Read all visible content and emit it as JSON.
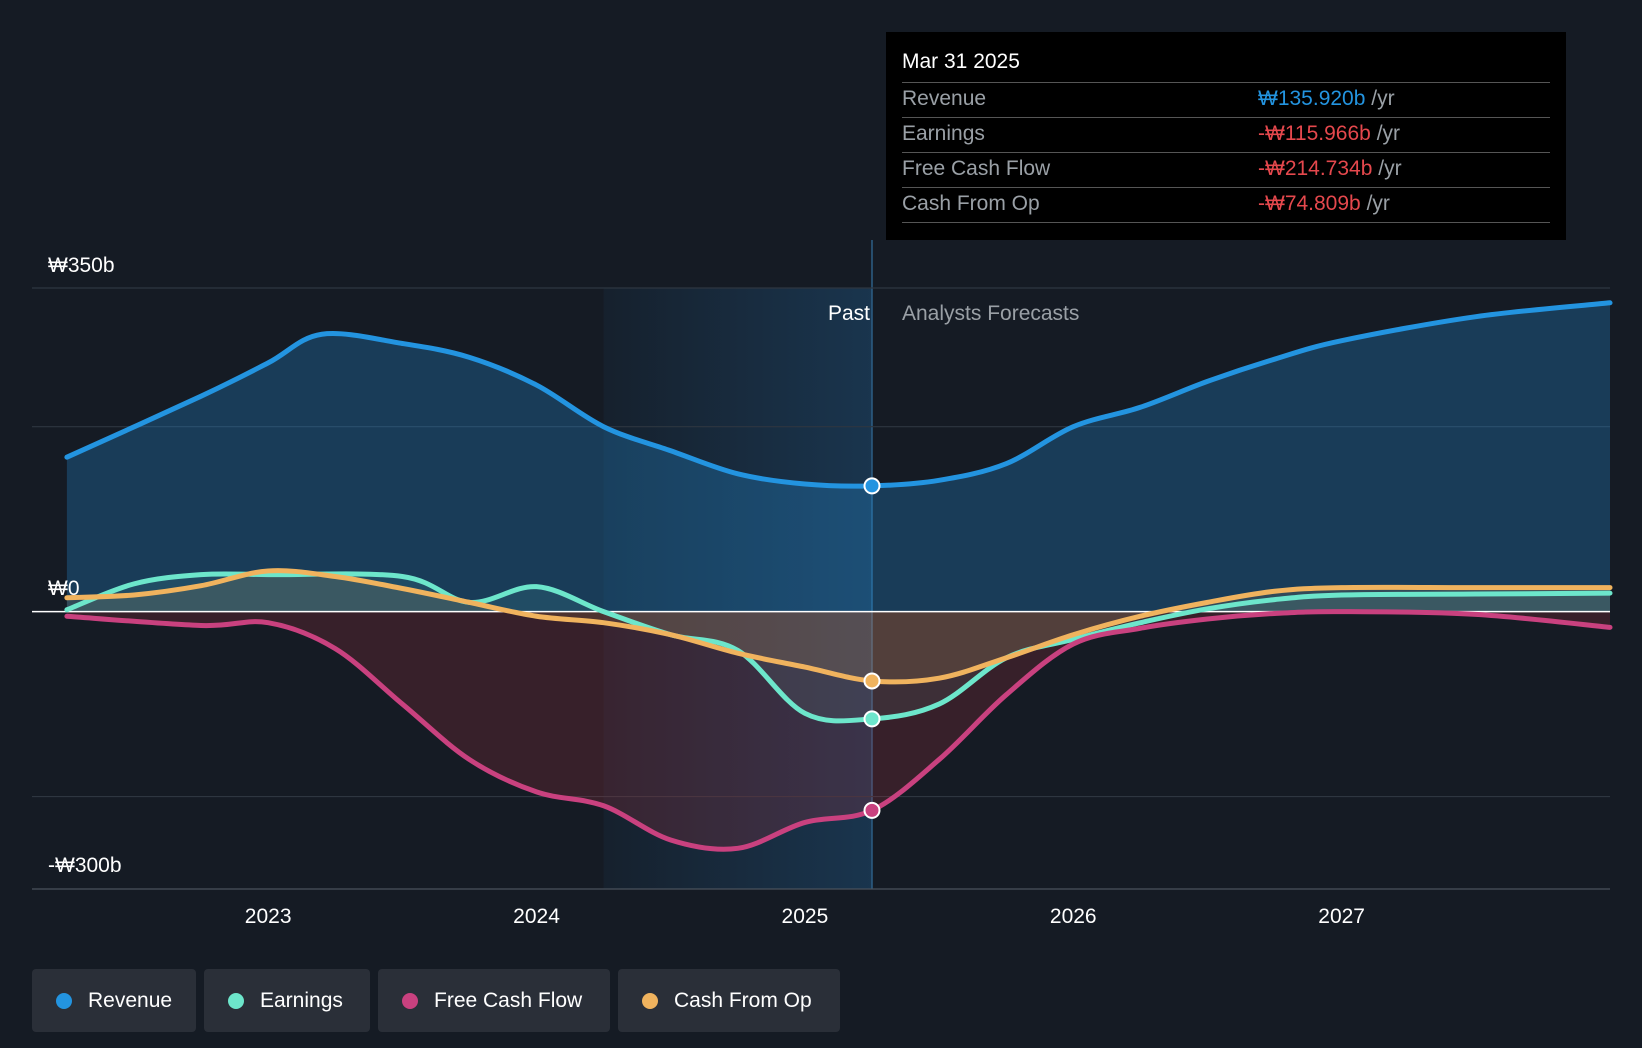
{
  "chart_data": {
    "type": "area",
    "y_axis": {
      "min": -300,
      "max": 350,
      "tick_labels": [
        "₩350b",
        "₩0",
        "-₩300b"
      ]
    },
    "x_axis": {
      "tick_labels": [
        "2023",
        "2024",
        "2025",
        "2026",
        "2027"
      ]
    },
    "past_label": "Past",
    "forecast_label": "Analysts Forecasts",
    "series": [
      {
        "name": "Revenue",
        "color": "#2394e0",
        "x": [
          2022.25,
          2022.75,
          2023.0,
          2023.2,
          2023.5,
          2023.75,
          2024.0,
          2024.25,
          2024.5,
          2024.75,
          2025.0,
          2025.25,
          2025.5,
          2025.75,
          2026.0,
          2026.25,
          2026.5,
          2026.75,
          2027.0,
          2027.5,
          2028.0
        ],
        "y": [
          167,
          233,
          269,
          300,
          290,
          275,
          245,
          200,
          174,
          149,
          138,
          136,
          142,
          160,
          200,
          221,
          249,
          273,
          293,
          319,
          334
        ]
      },
      {
        "name": "Earnings",
        "color": "#6de6cb",
        "x": [
          2022.25,
          2022.5,
          2022.75,
          2023.0,
          2023.5,
          2023.75,
          2024.0,
          2024.25,
          2024.5,
          2024.75,
          2025.0,
          2025.25,
          2025.5,
          2025.75,
          2026.0,
          2026.25,
          2026.5,
          2026.75,
          2027.0,
          2027.5,
          2028.0
        ],
        "y": [
          2,
          30,
          40,
          40,
          38,
          10,
          27,
          0,
          -25,
          -42,
          -110,
          -116,
          -100,
          -50,
          -30,
          -12,
          3,
          13,
          18,
          19,
          20
        ]
      },
      {
        "name": "Free Cash Flow",
        "color": "#c9417f",
        "x": [
          2022.25,
          2022.75,
          2023.0,
          2023.25,
          2023.5,
          2023.75,
          2024.0,
          2024.25,
          2024.5,
          2024.75,
          2025.0,
          2025.25,
          2025.5,
          2025.75,
          2026.0,
          2026.25,
          2026.5,
          2026.75,
          2027.0,
          2027.5,
          2028.0
        ],
        "y": [
          -5,
          -15,
          -12,
          -40,
          -100,
          -160,
          -195,
          -210,
          -247,
          -256,
          -228,
          -215,
          -160,
          -90,
          -35,
          -18,
          -8,
          -2,
          0,
          -3,
          -17
        ]
      },
      {
        "name": "Cash From Op",
        "color": "#f0b35e",
        "x": [
          2022.25,
          2022.5,
          2022.75,
          2023.0,
          2023.25,
          2023.5,
          2023.75,
          2024.0,
          2024.25,
          2024.5,
          2024.75,
          2025.0,
          2025.25,
          2025.5,
          2025.75,
          2026.0,
          2026.25,
          2026.5,
          2026.75,
          2027.0,
          2027.5,
          2028.0
        ],
        "y": [
          15,
          18,
          28,
          44,
          38,
          25,
          10,
          -5,
          -12,
          -25,
          -45,
          -60,
          -75,
          -72,
          -50,
          -25,
          -5,
          10,
          22,
          26,
          26,
          26
        ]
      }
    ],
    "highlight": {
      "x": 2025.25
    }
  },
  "tooltip": {
    "date": "Mar 31 2025",
    "rows": [
      {
        "label": "Revenue",
        "value": "₩135.920b",
        "unit": " /yr",
        "color": "#2394e0"
      },
      {
        "label": "Earnings",
        "value": "-₩115.966b",
        "unit": " /yr",
        "color": "#e5484d"
      },
      {
        "label": "Free Cash Flow",
        "value": "-₩214.734b",
        "unit": " /yr",
        "color": "#e5484d"
      },
      {
        "label": "Cash From Op",
        "value": "-₩74.809b",
        "unit": " /yr",
        "color": "#e5484d"
      }
    ]
  },
  "legend": [
    {
      "label": "Revenue",
      "color": "#2394e0"
    },
    {
      "label": "Earnings",
      "color": "#6de6cb"
    },
    {
      "label": "Free Cash Flow",
      "color": "#c9417f"
    },
    {
      "label": "Cash From Op",
      "color": "#f0b35e"
    }
  ]
}
